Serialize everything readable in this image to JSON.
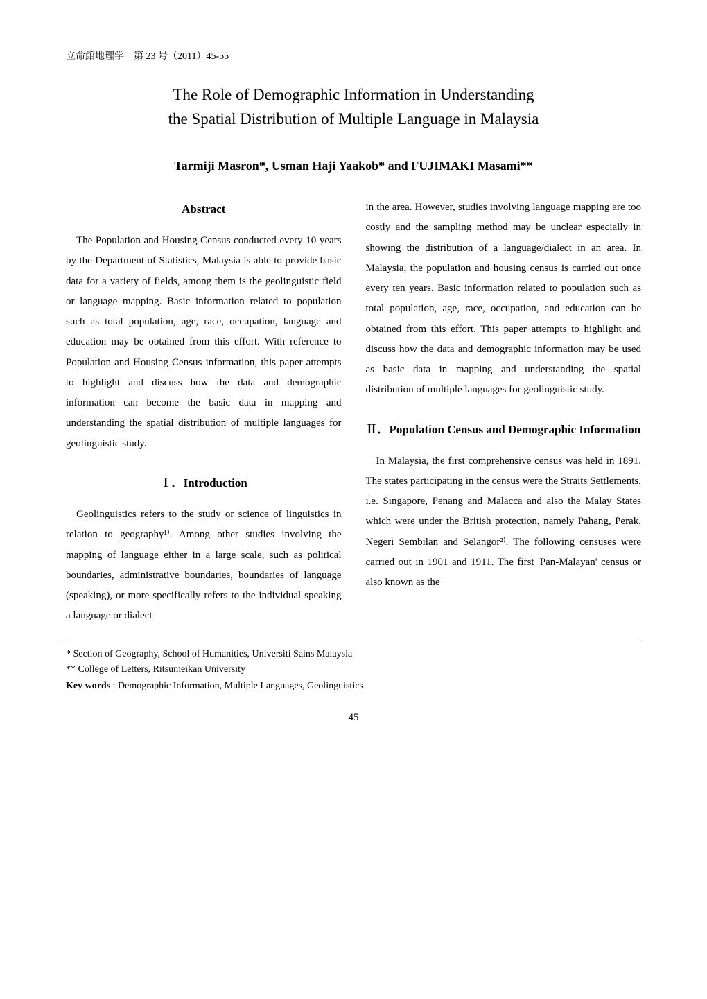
{
  "journal": {
    "name_jp": "立命館地理学　第 23 号（2011）45-55"
  },
  "title": {
    "line1": "The Role of Demographic Information in Understanding",
    "line2": "the Spatial Distribution of Multiple Language in Malaysia"
  },
  "authors": "Tarmiji Masron*, Usman Haji Yaakob* and FUJIMAKI Masami**",
  "abstract": {
    "heading": "Abstract",
    "text": "The Population and Housing Census conducted every 10 years by the Department of Statistics, Malaysia is able to provide basic data for a variety of fields, among them is the geolinguistic field or language mapping. Basic information related to population such as total population, age, race, occupation, language and education may be obtained from this effort. With reference to Population and Housing Census information, this paper attempts to highlight and discuss how the data and demographic information can become the basic data in mapping and understanding the spatial distribution of multiple languages for geolinguistic study."
  },
  "section1": {
    "heading": "Ⅰ．Introduction",
    "text": "Geolinguistics refers to the study or science of linguistics in relation to geography¹⁾. Among other studies involving the mapping of language either in a large scale, such as political boundaries, administrative boundaries, boundaries of language (speaking), or more specifically refers to the individual speaking a language or dialect"
  },
  "col2_intro_continuation": "in the area. However, studies involving language mapping are too costly and the sampling method may be unclear especially in showing the distribution of a language/dialect in an area. In Malaysia, the population and housing census is carried out once every ten years. Basic information related to population such as total population, age, race, occupation, and education can be obtained from this effort. This paper attempts to highlight and discuss how the data and demographic information may be used as basic data in mapping and understanding the spatial distribution of multiple languages for geolinguistic study.",
  "section2": {
    "heading": "Ⅱ．Population Census and Demographic Information",
    "text": "In Malaysia, the first comprehensive census was held in 1891. The states participating in the census were the Straits Settlements, i.e. Singapore, Penang and Malacca and also the Malay States which were under the British protection, namely Pahang, Perak, Negeri Sembilan and Selangor²⁾. The following censuses were carried out in 1901 and 1911. The first 'Pan-Malayan' census or also known as the"
  },
  "footnotes": {
    "f1": "*  Section of Geography, School of Humanities, Universiti Sains Malaysia",
    "f2": "** College of Letters, Ritsumeikan University"
  },
  "keywords": {
    "label": "Key words",
    "text": " : Demographic Information, Multiple Languages, Geolinguistics"
  },
  "page_number": "45"
}
